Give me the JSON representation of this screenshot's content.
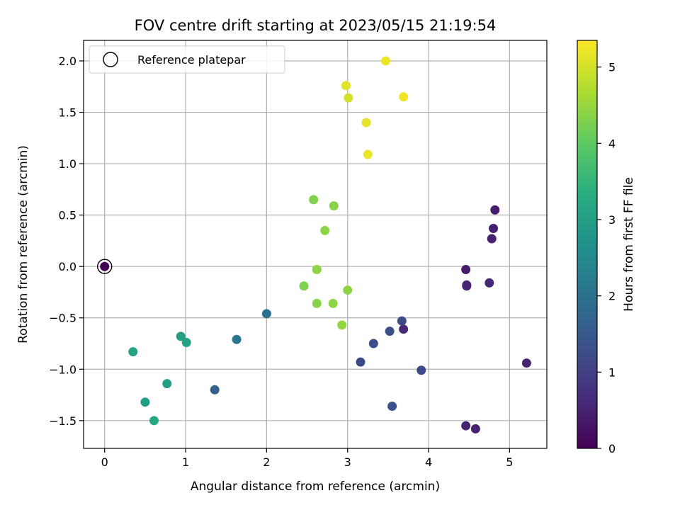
{
  "chart_data": {
    "type": "scatter",
    "title": "FOV centre drift starting at 2023/05/15 21:19:54",
    "xlabel": "Angular distance from reference (arcmin)",
    "ylabel": "Rotation from reference (arcmin)",
    "xlim": [
      -0.26,
      5.46
    ],
    "ylim": [
      -1.77,
      2.2
    ],
    "x_ticks": [
      0,
      1,
      2,
      3,
      4,
      5
    ],
    "y_ticks": [
      -1.5,
      -1.0,
      -0.5,
      0.0,
      0.5,
      1.0,
      1.5,
      2.0
    ],
    "x_tick_labels": [
      "0",
      "1",
      "2",
      "3",
      "4",
      "5"
    ],
    "y_tick_labels": [
      "−1.5",
      "−1.0",
      "−0.5",
      "0.0",
      "0.5",
      "1.0",
      "1.5",
      "2.0"
    ],
    "grid": true,
    "legend": {
      "position": "top-left",
      "entries": [
        {
          "label": "Reference platepar",
          "marker": "hollow-circle"
        }
      ]
    },
    "reference_point": {
      "x": 0,
      "y": 0
    },
    "colorbar": {
      "label": "Hours from first FF file",
      "colormap": "viridis",
      "range": [
        0,
        5.35
      ],
      "ticks": [
        0,
        1,
        2,
        3,
        4,
        5
      ],
      "tick_labels": [
        "0",
        "1",
        "2",
        "3",
        "4",
        "5"
      ]
    },
    "points": [
      {
        "x": 0.0,
        "y": 0.0,
        "hours": 0.0
      },
      {
        "x": 4.82,
        "y": 0.55,
        "hours": 0.4
      },
      {
        "x": 4.8,
        "y": 0.37,
        "hours": 0.45
      },
      {
        "x": 4.78,
        "y": 0.27,
        "hours": 0.5
      },
      {
        "x": 4.46,
        "y": -0.03,
        "hours": 0.4
      },
      {
        "x": 4.47,
        "y": -0.19,
        "hours": 0.5
      },
      {
        "x": 4.47,
        "y": -0.18,
        "hours": 0.55
      },
      {
        "x": 4.75,
        "y": -0.16,
        "hours": 0.6
      },
      {
        "x": 5.21,
        "y": -0.94,
        "hours": 0.55
      },
      {
        "x": 4.46,
        "y": -1.55,
        "hours": 0.55
      },
      {
        "x": 4.58,
        "y": -1.58,
        "hours": 0.5
      },
      {
        "x": 3.69,
        "y": -0.61,
        "hours": 0.6
      },
      {
        "x": 3.67,
        "y": -0.53,
        "hours": 1.2
      },
      {
        "x": 3.52,
        "y": -0.63,
        "hours": 1.3
      },
      {
        "x": 3.32,
        "y": -0.75,
        "hours": 1.25
      },
      {
        "x": 3.16,
        "y": -0.93,
        "hours": 1.2
      },
      {
        "x": 3.91,
        "y": -1.01,
        "hours": 1.2
      },
      {
        "x": 3.55,
        "y": -1.36,
        "hours": 1.3
      },
      {
        "x": 1.36,
        "y": -1.2,
        "hours": 1.6
      },
      {
        "x": 2.0,
        "y": -0.46,
        "hours": 2.0
      },
      {
        "x": 1.63,
        "y": -0.71,
        "hours": 2.1
      },
      {
        "x": 0.94,
        "y": -0.68,
        "hours": 3.0
      },
      {
        "x": 1.01,
        "y": -0.74,
        "hours": 3.05
      },
      {
        "x": 0.35,
        "y": -0.83,
        "hours": 3.1
      },
      {
        "x": 0.77,
        "y": -1.14,
        "hours": 3.0
      },
      {
        "x": 0.5,
        "y": -1.32,
        "hours": 2.95
      },
      {
        "x": 0.61,
        "y": -1.5,
        "hours": 3.2
      },
      {
        "x": 2.58,
        "y": 0.65,
        "hours": 4.3
      },
      {
        "x": 2.83,
        "y": 0.59,
        "hours": 4.35
      },
      {
        "x": 2.72,
        "y": 0.35,
        "hours": 4.4
      },
      {
        "x": 2.62,
        "y": -0.03,
        "hours": 4.4
      },
      {
        "x": 2.46,
        "y": -0.19,
        "hours": 4.3
      },
      {
        "x": 3.0,
        "y": -0.23,
        "hours": 4.4
      },
      {
        "x": 2.62,
        "y": -0.36,
        "hours": 4.35
      },
      {
        "x": 2.82,
        "y": -0.36,
        "hours": 4.4
      },
      {
        "x": 2.93,
        "y": -0.57,
        "hours": 4.45
      },
      {
        "x": 2.98,
        "y": 1.76,
        "hours": 5.1
      },
      {
        "x": 3.01,
        "y": 1.64,
        "hours": 5.0
      },
      {
        "x": 3.47,
        "y": 2.0,
        "hours": 5.2
      },
      {
        "x": 3.69,
        "y": 1.65,
        "hours": 5.25
      },
      {
        "x": 3.23,
        "y": 1.4,
        "hours": 5.15
      },
      {
        "x": 3.25,
        "y": 1.09,
        "hours": 5.2
      }
    ]
  }
}
